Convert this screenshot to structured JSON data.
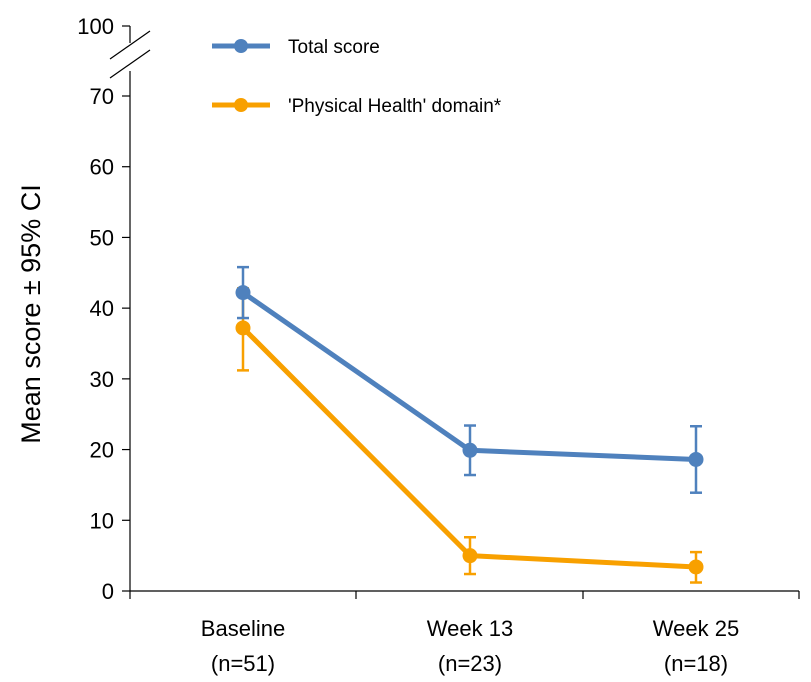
{
  "chart_data": {
    "type": "line",
    "ylabel": "Mean score ± 95% CI",
    "ylim": [
      0,
      70
    ],
    "y_break_top_label": "100",
    "yticks": [
      "0",
      "10",
      "20",
      "30",
      "40",
      "50",
      "60",
      "70"
    ],
    "categories": [
      {
        "line1": "Baseline",
        "line2": "(n=51)"
      },
      {
        "line1": "Week 13",
        "line2": "(n=23)"
      },
      {
        "line1": "Week 25",
        "line2": "(n=18)"
      }
    ],
    "series": [
      {
        "name": "Total score",
        "color": "#4F81BD",
        "values": [
          42.2,
          19.9,
          18.6
        ],
        "ci_low": [
          38.6,
          16.4,
          13.9
        ],
        "ci_high": [
          45.8,
          23.4,
          23.3
        ]
      },
      {
        "name": "'Physical Health' domain*",
        "color": "#F8A000",
        "values": [
          37.2,
          5.0,
          3.4
        ],
        "ci_low": [
          31.2,
          2.4,
          1.2
        ],
        "ci_high": [
          42.8,
          7.6,
          5.5
        ]
      }
    ],
    "legend_position": "top-left",
    "grid": false
  }
}
